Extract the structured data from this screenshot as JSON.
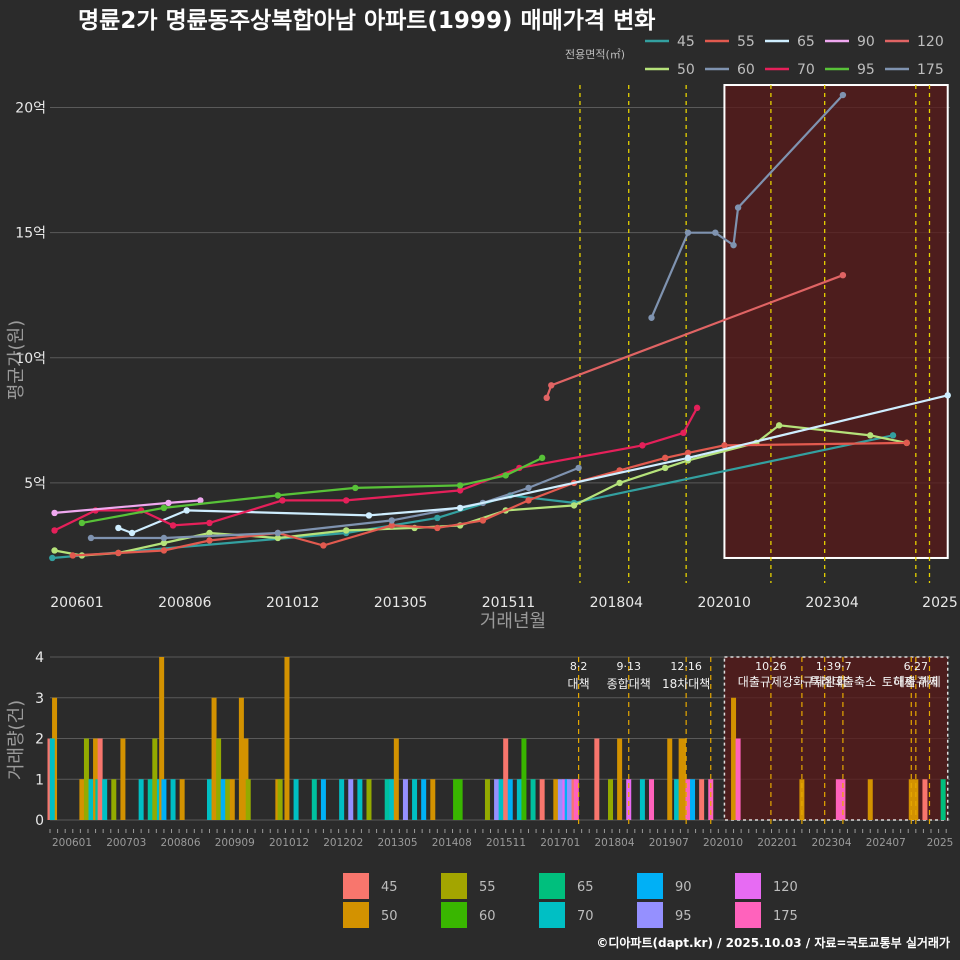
{
  "chart_data": [
    {
      "type": "line",
      "title": "명륜2가 명륜동주상복합아남 아파트(1999) 매매가격 변화",
      "xlabel": "거래년월",
      "ylabel": "평균가(원)",
      "x_ticks": [
        "200601",
        "200806",
        "201012",
        "201305",
        "201511",
        "201804",
        "202010",
        "202304",
        "2025"
      ],
      "y_ticks": [
        {
          "v": 5,
          "label": "5억"
        },
        {
          "v": 10,
          "label": "10억"
        },
        {
          "v": 15,
          "label": "15억"
        },
        {
          "v": 20,
          "label": "20억"
        }
      ],
      "xlim": [
        2006.0,
        2025.75
      ],
      "ylim": [
        1.0,
        21.5
      ],
      "legend_title": "전용면적(㎡)",
      "vlines": [
        2017.63,
        2018.7,
        2019.96,
        2021.82,
        2023.0,
        2025.0,
        2025.3
      ],
      "highlight": {
        "x0": 2020.8,
        "x1": 2025.7,
        "y0": 2.0,
        "y1": 20.9
      },
      "series": [
        {
          "name": "45",
          "color": "#33a0a0",
          "points": [
            [
              2006.05,
              2.0
            ],
            [
              2012.5,
              3.0
            ],
            [
              2014.5,
              3.6
            ],
            [
              2016.1,
              4.5
            ],
            [
              2017.5,
              4.2
            ],
            [
              2024.5,
              6.9
            ]
          ]
        },
        {
          "name": "50",
          "color": "#b5e27a",
          "points": [
            [
              2006.1,
              2.3
            ],
            [
              2006.7,
              2.1
            ],
            [
              2007.5,
              2.2
            ],
            [
              2008.5,
              2.6
            ],
            [
              2009.5,
              3.0
            ],
            [
              2011.0,
              2.8
            ],
            [
              2012.5,
              3.1
            ],
            [
              2014.0,
              3.2
            ],
            [
              2015.0,
              3.3
            ],
            [
              2016.0,
              3.9
            ],
            [
              2017.5,
              4.1
            ],
            [
              2018.5,
              5.0
            ],
            [
              2019.5,
              5.6
            ],
            [
              2020.0,
              5.9
            ],
            [
              2021.5,
              6.6
            ],
            [
              2022.0,
              7.3
            ],
            [
              2024.0,
              6.9
            ],
            [
              2024.8,
              6.6
            ]
          ]
        },
        {
          "name": "55",
          "color": "#e25a4f",
          "points": [
            [
              2006.5,
              2.1
            ],
            [
              2007.5,
              2.2
            ],
            [
              2008.5,
              2.3
            ],
            [
              2009.5,
              2.7
            ],
            [
              2011.0,
              3.0
            ],
            [
              2012.0,
              2.5
            ],
            [
              2013.5,
              3.3
            ],
            [
              2014.5,
              3.2
            ],
            [
              2015.5,
              3.5
            ],
            [
              2016.5,
              4.3
            ],
            [
              2017.5,
              5.0
            ],
            [
              2018.5,
              5.5
            ],
            [
              2019.5,
              6.0
            ],
            [
              2020.0,
              6.2
            ],
            [
              2020.8,
              6.5
            ],
            [
              2024.8,
              6.6
            ]
          ]
        },
        {
          "name": "60",
          "color": "#7f93b0",
          "points": [
            [
              2006.9,
              2.8
            ],
            [
              2008.5,
              2.8
            ],
            [
              2011.0,
              3.0
            ],
            [
              2013.5,
              3.5
            ],
            [
              2015.5,
              4.2
            ],
            [
              2016.5,
              4.8
            ],
            [
              2017.6,
              5.6
            ]
          ]
        },
        {
          "name": "65",
          "color": "#cfeeff",
          "points": [
            [
              2007.5,
              3.2
            ],
            [
              2007.8,
              3.0
            ],
            [
              2009.0,
              3.9
            ],
            [
              2013.0,
              3.7
            ],
            [
              2015.0,
              4.0
            ],
            [
              2020.0,
              6.0
            ],
            [
              2025.7,
              8.5
            ]
          ]
        },
        {
          "name": "70",
          "color": "#e5205a",
          "points": [
            [
              2006.1,
              3.1
            ],
            [
              2007.0,
              3.9
            ],
            [
              2008.0,
              3.9
            ],
            [
              2008.7,
              3.3
            ],
            [
              2009.5,
              3.4
            ],
            [
              2011.1,
              4.3
            ],
            [
              2012.5,
              4.3
            ],
            [
              2015.0,
              4.7
            ],
            [
              2016.3,
              5.6
            ],
            [
              2019.0,
              6.5
            ],
            [
              2019.9,
              7.0
            ],
            [
              2020.2,
              8.0
            ]
          ]
        },
        {
          "name": "90",
          "color": "#f0a8f0",
          "points": [
            [
              2006.1,
              3.8
            ],
            [
              2008.6,
              4.2
            ],
            [
              2009.3,
              4.3
            ]
          ]
        },
        {
          "name": "95",
          "color": "#58c238",
          "points": [
            [
              2006.7,
              3.4
            ],
            [
              2008.5,
              4.0
            ],
            [
              2011.0,
              4.5
            ],
            [
              2012.7,
              4.8
            ],
            [
              2015.0,
              4.9
            ],
            [
              2016.0,
              5.3
            ],
            [
              2016.8,
              6.0
            ]
          ]
        },
        {
          "name": "120",
          "color": "#e06464",
          "points": [
            [
              2016.9,
              8.4
            ],
            [
              2017.0,
              8.9
            ],
            [
              2023.4,
              13.3
            ]
          ]
        },
        {
          "name": "175",
          "color": "#7f93b0",
          "points": [
            [
              2019.2,
              11.6
            ],
            [
              2020.0,
              15.0
            ],
            [
              2020.6,
              15.0
            ],
            [
              2021.0,
              14.5
            ],
            [
              2021.1,
              16.0
            ],
            [
              2023.4,
              20.5
            ]
          ]
        }
      ]
    },
    {
      "type": "bar",
      "xlabel": "",
      "ylabel": "거래량(건)",
      "ylim": [
        0,
        4
      ],
      "y_ticks": [
        "0",
        "1",
        "2",
        "3",
        "4"
      ],
      "x_ticks": [
        "200601",
        "200703",
        "200806",
        "200909",
        "201012",
        "201202",
        "201305",
        "201408",
        "201511",
        "201701",
        "201804",
        "201907",
        "202010",
        "202201",
        "202304",
        "202407",
        "2025"
      ],
      "xlim": [
        2006.0,
        2025.75
      ],
      "policy_lines": [
        {
          "x": 2017.6,
          "date": "8·2",
          "label": "대책"
        },
        {
          "x": 2018.7,
          "date": "9·13",
          "label": "종합대책"
        },
        {
          "x": 2019.96,
          "date": "12·16",
          "label": "18차대책"
        },
        {
          "x": 2020.5,
          "date": "",
          "label": ""
        },
        {
          "x": 2021.82,
          "date": "10·26",
          "label": "대출규제강화"
        },
        {
          "x": 2022.5,
          "date": "",
          "label": ""
        },
        {
          "x": 2023.0,
          "date": "1·3",
          "label": "규제완화"
        },
        {
          "x": 2023.4,
          "date": "9·7",
          "label": "특례대출축소"
        },
        {
          "x": 2024.9,
          "date": "",
          "label": "토허제 해제"
        },
        {
          "x": 2025.0,
          "date": "6·27",
          "label": "대출규제"
        },
        {
          "x": 2025.3,
          "date": "",
          "label": ""
        }
      ],
      "highlight": {
        "x0": 2020.8,
        "x1": 2025.7
      },
      "categories": [
        "45",
        "50",
        "55",
        "60",
        "65",
        "70",
        "90",
        "95",
        "120",
        "175"
      ],
      "colors": [
        "#f8766d",
        "#d39200",
        "#93aa00",
        "#00ba38",
        "#00c19f",
        "#00b9e3",
        "#00b9e3",
        "#9590ff",
        "#db72fb",
        "#ff61c3"
      ],
      "legend_colors": [
        "#f8766d",
        "#d39200",
        "#a3a500",
        "#39b600",
        "#00bf7d",
        "#00bfc4",
        "#00b0f6",
        "#9590ff",
        "#e76bf3",
        "#ff62bc"
      ],
      "bars": [
        [
          2006.0,
          2,
          "#f8766d"
        ],
        [
          2006.1,
          3,
          "#d39200"
        ],
        [
          2006.05,
          2,
          "#00bfc4"
        ],
        [
          2006.7,
          1,
          "#d39200"
        ],
        [
          2006.8,
          2,
          "#93aa00"
        ],
        [
          2006.9,
          1,
          "#00bfc4"
        ],
        [
          2007.0,
          2,
          "#d39200"
        ],
        [
          2007.05,
          1,
          "#00c19f"
        ],
        [
          2007.1,
          2,
          "#f8766d"
        ],
        [
          2007.2,
          1,
          "#00bfc4"
        ],
        [
          2007.4,
          1,
          "#93aa00"
        ],
        [
          2007.6,
          2,
          "#d39200"
        ],
        [
          2008.0,
          1,
          "#00bfc4"
        ],
        [
          2008.2,
          1,
          "#00c19f"
        ],
        [
          2008.3,
          2,
          "#93aa00"
        ],
        [
          2008.4,
          1,
          "#00bfc4"
        ],
        [
          2008.45,
          4,
          "#d39200"
        ],
        [
          2008.5,
          1,
          "#00b0f6"
        ],
        [
          2008.7,
          1,
          "#00bfc4"
        ],
        [
          2008.9,
          1,
          "#d39200"
        ],
        [
          2009.5,
          1,
          "#00bfc4"
        ],
        [
          2009.6,
          3,
          "#d39200"
        ],
        [
          2009.7,
          2,
          "#93aa00"
        ],
        [
          2009.8,
          1,
          "#00b0f6"
        ],
        [
          2009.9,
          1,
          "#93aa00"
        ],
        [
          2010.0,
          1,
          "#d39200"
        ],
        [
          2010.2,
          3,
          "#d39200"
        ],
        [
          2010.3,
          2,
          "#d39200"
        ],
        [
          2010.35,
          1,
          "#93aa00"
        ],
        [
          2011.0,
          1,
          "#d39200"
        ],
        [
          2011.05,
          1,
          "#93aa00"
        ],
        [
          2011.2,
          4,
          "#d39200"
        ],
        [
          2011.4,
          1,
          "#00bfc4"
        ],
        [
          2011.8,
          1,
          "#00c19f"
        ],
        [
          2012.0,
          1,
          "#00b0f6"
        ],
        [
          2012.4,
          1,
          "#00bfc4"
        ],
        [
          2012.6,
          1,
          "#9590ff"
        ],
        [
          2012.8,
          1,
          "#00bfc4"
        ],
        [
          2013.0,
          1,
          "#93aa00"
        ],
        [
          2013.4,
          1,
          "#00c19f"
        ],
        [
          2013.5,
          1,
          "#00bfc4"
        ],
        [
          2013.6,
          2,
          "#d39200"
        ],
        [
          2013.8,
          1,
          "#9590ff"
        ],
        [
          2014.0,
          1,
          "#00bfc4"
        ],
        [
          2014.2,
          1,
          "#00b0f6"
        ],
        [
          2014.4,
          1,
          "#d39200"
        ],
        [
          2014.9,
          1,
          "#39b600"
        ],
        [
          2015.0,
          1,
          "#39b600"
        ],
        [
          2015.6,
          1,
          "#93aa00"
        ],
        [
          2015.8,
          1,
          "#9590ff"
        ],
        [
          2015.9,
          1,
          "#00bfc4"
        ],
        [
          2016.0,
          2,
          "#f8766d"
        ],
        [
          2016.1,
          1,
          "#00b0f6"
        ],
        [
          2016.3,
          1,
          "#00bfc4"
        ],
        [
          2016.4,
          2,
          "#39b600"
        ],
        [
          2016.6,
          1,
          "#00c19f"
        ],
        [
          2016.8,
          1,
          "#f8766d"
        ],
        [
          2017.1,
          1,
          "#d39200"
        ],
        [
          2017.2,
          1,
          "#9590ff"
        ],
        [
          2017.3,
          1,
          "#e76bf3"
        ],
        [
          2017.35,
          1,
          "#00b0f6"
        ],
        [
          2017.4,
          1,
          "#9590ff"
        ],
        [
          2017.5,
          1,
          "#f8766d"
        ],
        [
          2017.55,
          1,
          "#ff62bc"
        ],
        [
          2018.0,
          2,
          "#f8766d"
        ],
        [
          2018.3,
          1,
          "#93aa00"
        ],
        [
          2018.5,
          2,
          "#d39200"
        ],
        [
          2018.7,
          1,
          "#e76bf3"
        ],
        [
          2019.0,
          1,
          "#00bfc4"
        ],
        [
          2019.2,
          1,
          "#ff62bc"
        ],
        [
          2019.6,
          2,
          "#d39200"
        ],
        [
          2019.75,
          1,
          "#00bfc4"
        ],
        [
          2019.85,
          2,
          "#d39200"
        ],
        [
          2019.9,
          2,
          "#d39200"
        ],
        [
          2020.0,
          1,
          "#ff62bc"
        ],
        [
          2020.1,
          1,
          "#00b0f6"
        ],
        [
          2020.3,
          1,
          "#f8766d"
        ],
        [
          2020.5,
          1,
          "#ff62bc"
        ],
        [
          2021.0,
          3,
          "#d39200"
        ],
        [
          2021.1,
          2,
          "#ff62bc"
        ],
        [
          2022.5,
          1,
          "#d39200"
        ],
        [
          2023.3,
          1,
          "#ff62bc"
        ],
        [
          2023.4,
          1,
          "#ff62bc"
        ],
        [
          2024.0,
          1,
          "#d39200"
        ],
        [
          2024.9,
          1,
          "#d39200"
        ],
        [
          2025.0,
          1,
          "#d39200"
        ],
        [
          2025.2,
          1,
          "#f8766d"
        ],
        [
          2025.6,
          1,
          "#00bf7d"
        ]
      ]
    }
  ],
  "credit": "©디아파트(dapt.kr) / 2025.10.03 / 자료=국토교통부 실거래가"
}
